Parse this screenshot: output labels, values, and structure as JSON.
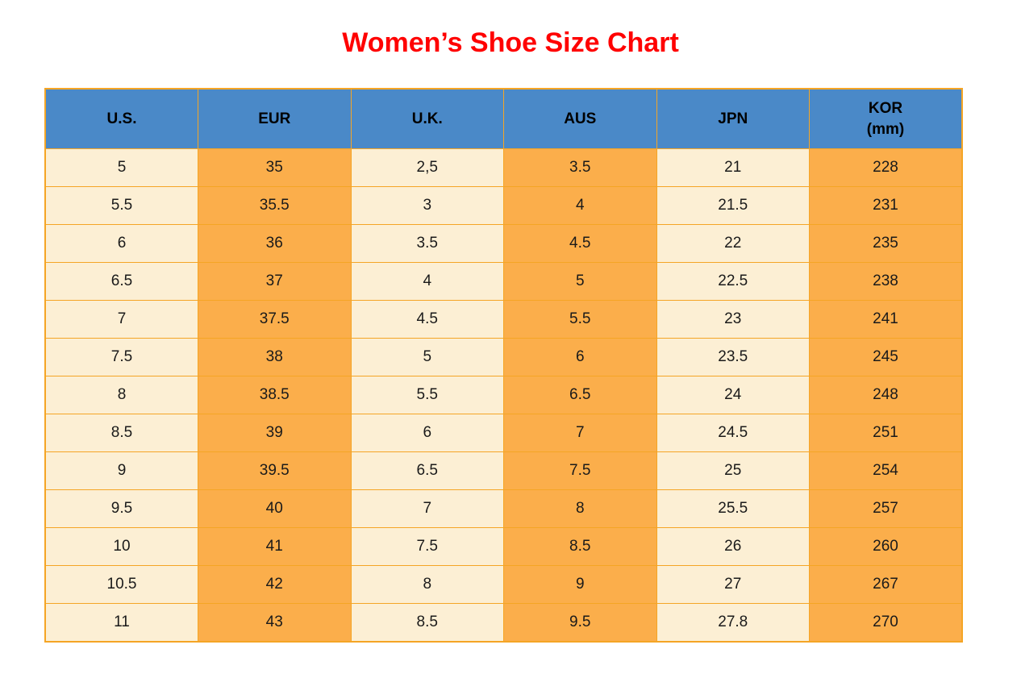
{
  "page": {
    "background": "#FFFFFF"
  },
  "title": {
    "text": "Women’s Shoe Size Chart",
    "color": "#FF0000"
  },
  "colors": {
    "header_bg": "#4A89C8",
    "header_text": "#000000",
    "cell_light_bg": "#FCEFD4",
    "cell_accent_bg": "#FBAE4B",
    "grid_border": "#F5A525",
    "body_text": "#1A1A1A",
    "title_red": "#FF0000"
  },
  "table": {
    "headers": [
      {
        "label": "U.S.",
        "sublabel": ""
      },
      {
        "label": "EUR",
        "sublabel": ""
      },
      {
        "label": "U.K.",
        "sublabel": ""
      },
      {
        "label": "AUS",
        "sublabel": ""
      },
      {
        "label": "JPN",
        "sublabel": ""
      },
      {
        "label": "KOR",
        "sublabel": "(mm)"
      }
    ]
  },
  "chart_data": {
    "type": "table",
    "title": "Women’s Shoe Size Chart",
    "columns": [
      "U.S.",
      "EUR",
      "U.K.",
      "AUS",
      "JPN",
      "KOR (mm)"
    ],
    "rows": [
      [
        "5",
        "35",
        "2,5",
        "3.5",
        "21",
        "228"
      ],
      [
        "5.5",
        "35.5",
        "3",
        "4",
        "21.5",
        "231"
      ],
      [
        "6",
        "36",
        "3.5",
        "4.5",
        "22",
        "235"
      ],
      [
        "6.5",
        "37",
        "4",
        "5",
        "22.5",
        "238"
      ],
      [
        "7",
        "37.5",
        "4.5",
        "5.5",
        "23",
        "241"
      ],
      [
        "7.5",
        "38",
        "5",
        "6",
        "23.5",
        "245"
      ],
      [
        "8",
        "38.5",
        "5.5",
        "6.5",
        "24",
        "248"
      ],
      [
        "8.5",
        "39",
        "6",
        "7",
        "24.5",
        "251"
      ],
      [
        "9",
        "39.5",
        "6.5",
        "7.5",
        "25",
        "254"
      ],
      [
        "9.5",
        "40",
        "7",
        "8",
        "25.5",
        "257"
      ],
      [
        "10",
        "41",
        "7.5",
        "8.5",
        "26",
        "260"
      ],
      [
        "10.5",
        "42",
        "8",
        "9",
        "27",
        "267"
      ],
      [
        "11",
        "43",
        "8.5",
        "9.5",
        "27.8",
        "270"
      ]
    ]
  }
}
